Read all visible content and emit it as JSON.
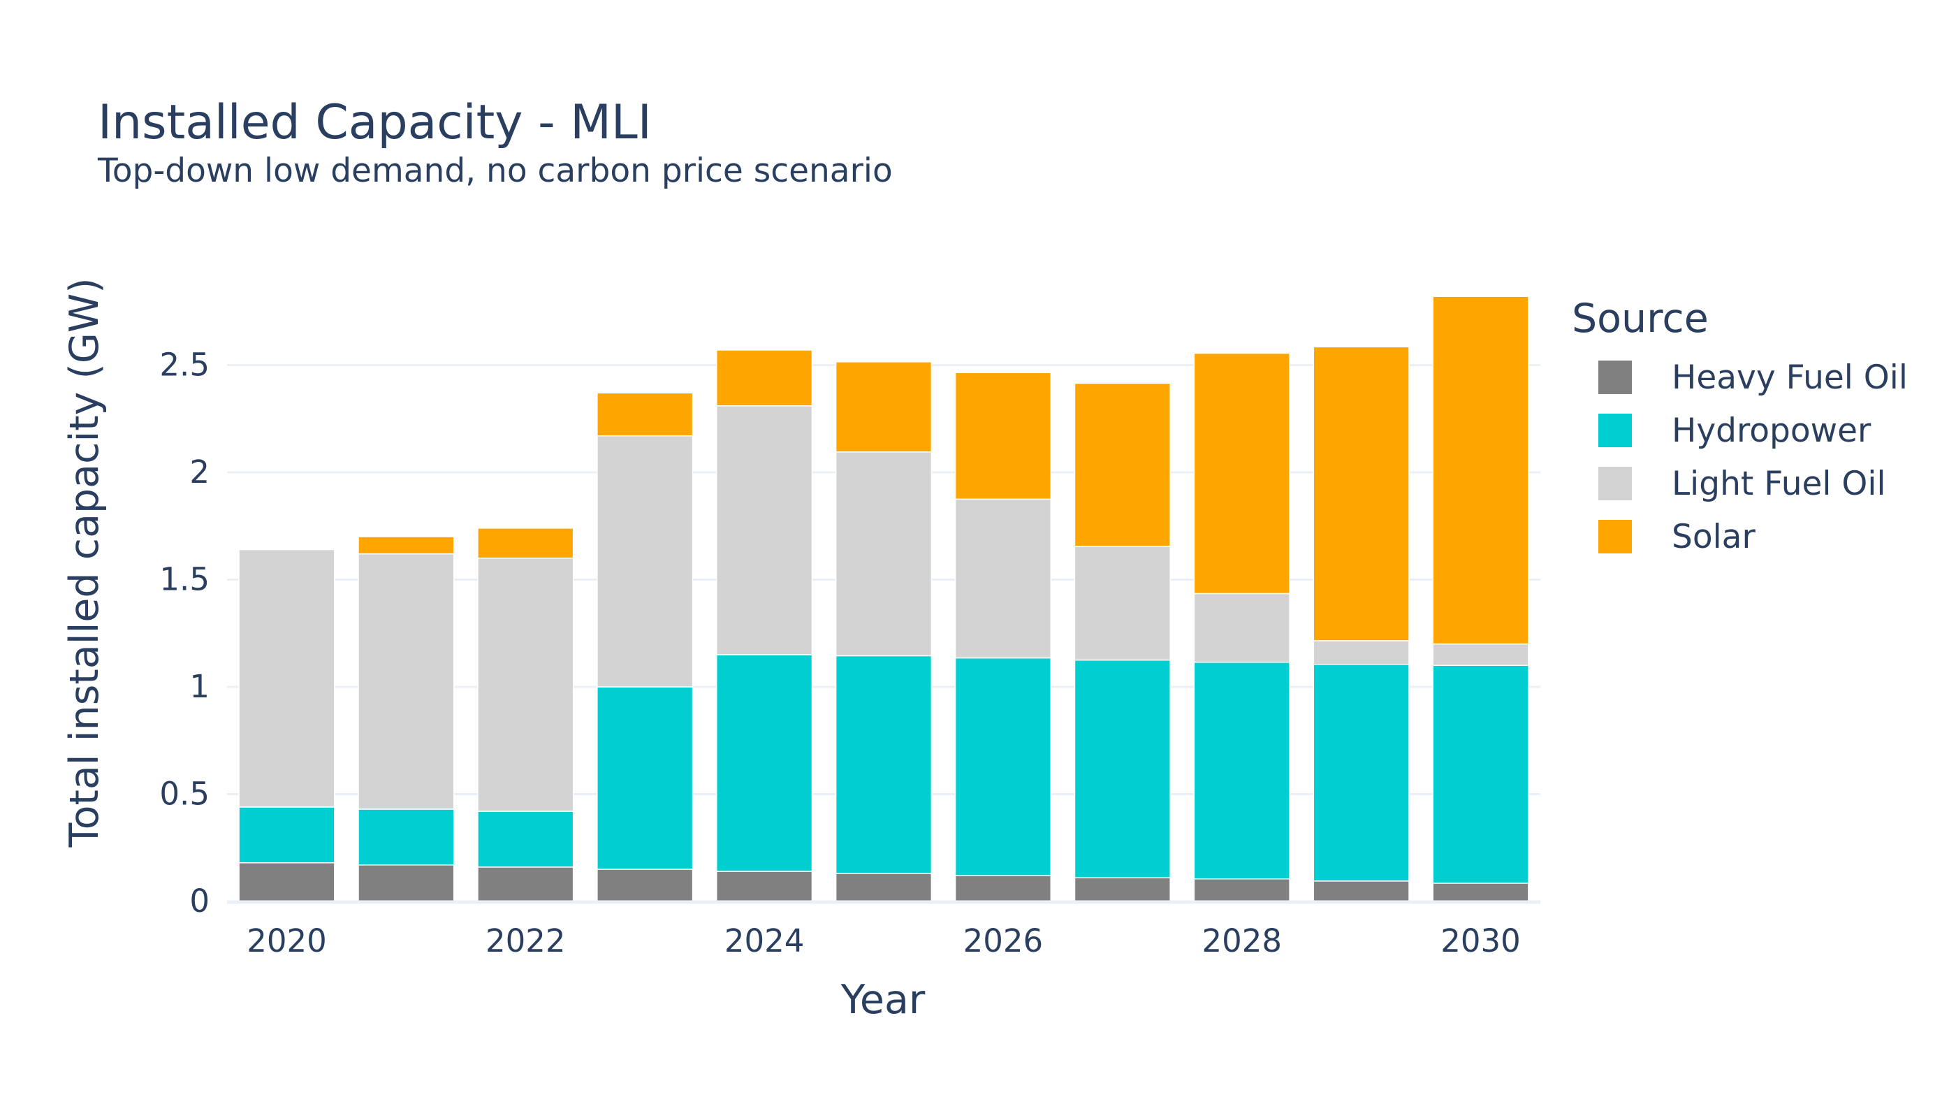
{
  "chart_data": {
    "type": "bar",
    "stacked": true,
    "title": "Installed Capacity - MLI",
    "subtitle": "Top-down low demand, no carbon price scenario",
    "xlabel": "Year",
    "ylabel": "Total installed capacity (GW)",
    "ylim": [
      0,
      2.85
    ],
    "grid": true,
    "legend_title": "Source",
    "legend_position": "right",
    "categories": [
      2020,
      2021,
      2022,
      2023,
      2024,
      2025,
      2026,
      2027,
      2028,
      2029,
      2030
    ],
    "x_tick_labels": [
      "2020",
      "2022",
      "2024",
      "2026",
      "2028",
      "2030"
    ],
    "y_tick_values": [
      0,
      0.5,
      1,
      1.5,
      2,
      2.5
    ],
    "y_tick_labels": [
      "0",
      "0.5",
      "1",
      "1.5",
      "2",
      "2.5"
    ],
    "series": [
      {
        "name": "Heavy Fuel Oil",
        "color": "#808080",
        "values": [
          0.18,
          0.17,
          0.16,
          0.15,
          0.14,
          0.13,
          0.12,
          0.11,
          0.105,
          0.095,
          0.085
        ]
      },
      {
        "name": "Hydropower",
        "color": "#00ced1",
        "values": [
          0.26,
          0.26,
          0.26,
          0.85,
          1.01,
          1.015,
          1.015,
          1.015,
          1.01,
          1.01,
          1.015
        ]
      },
      {
        "name": "Light Fuel Oil",
        "color": "#d3d3d3",
        "values": [
          1.2,
          1.19,
          1.18,
          1.17,
          1.16,
          0.95,
          0.74,
          0.53,
          0.32,
          0.11,
          0.1
        ]
      },
      {
        "name": "Solar",
        "color": "#ffa500",
        "values": [
          0,
          0.08,
          0.14,
          0.2,
          0.26,
          0.42,
          0.59,
          0.76,
          1.12,
          1.37,
          1.62
        ]
      }
    ]
  }
}
